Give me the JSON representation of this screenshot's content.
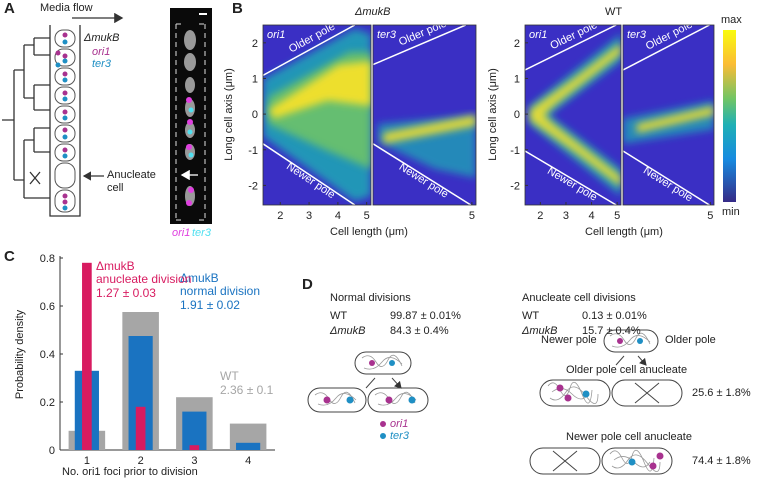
{
  "panel_a": {
    "label": "A",
    "media_flow": "Media flow",
    "strain": "ΔmukB",
    "legend": [
      {
        "name": "ori1",
        "color": "#a8328f"
      },
      {
        "name": "ter3",
        "color": "#1f8fc4"
      }
    ],
    "anucleate_cell": "Anucleate cell",
    "micrograph_labels": [
      {
        "name": "ori1",
        "color": "#e040e0"
      },
      {
        "name": "ter3",
        "color": "#50e0f0"
      }
    ]
  },
  "panel_b": {
    "label": "B",
    "xlim": [
      1.4,
      5.15
    ],
    "ylim": [
      -2.55,
      2.5
    ],
    "yticks": [
      -2,
      -1,
      0,
      1,
      2
    ],
    "x_label": "Cell length (μm)",
    "y_label": "Long cell axis (μm)",
    "older_pole": "Older pole",
    "newer_pole": "Newer pole",
    "strains": [
      {
        "title": "ΔmukB",
        "maps": [
          {
            "label": "ori1",
            "xticks": [
              2,
              3,
              4,
              5
            ]
          },
          {
            "label": "ter3",
            "xticks": [
              5
            ]
          }
        ]
      },
      {
        "title": "WT",
        "maps": [
          {
            "label": "ori1",
            "xticks": [
              2,
              3,
              4,
              5
            ]
          },
          {
            "label": "ter3",
            "xticks": [
              5
            ]
          }
        ]
      }
    ],
    "colorbar": {
      "max": "max",
      "min": "min"
    }
  },
  "chart_data": {
    "type": "bar",
    "panel_label": "C",
    "categories": [
      "1",
      "2",
      "3",
      "4"
    ],
    "x_label": "No. ori1 foci prior to division",
    "y_label": "Probability density",
    "ylim": [
      0,
      0.8
    ],
    "yticks": [
      0,
      0.2,
      0.4,
      0.6,
      0.8
    ],
    "series": [
      {
        "name": "WT",
        "annotation": "2.36 ± 0.1",
        "color": "#a6a6a6",
        "values": [
          0.08,
          0.575,
          0.22,
          0.11
        ]
      },
      {
        "name": "ΔmukB\nnormal division",
        "annotation": "1.91 ± 0.02",
        "color": "#1a73c1",
        "values": [
          0.33,
          0.475,
          0.16,
          0.03
        ]
      },
      {
        "name": "ΔmukB\nanucleate division",
        "annotation": "1.27 ± 0.03",
        "color": "#d81b60",
        "values": [
          0.78,
          0.18,
          0.02,
          0
        ]
      }
    ]
  },
  "panel_d": {
    "label": "D",
    "normal": {
      "title": "Normal divisions",
      "rows": [
        [
          "WT",
          "99.87 ± 0.01%"
        ],
        [
          "ΔmukB",
          "84.3 ± 0.4%"
        ]
      ]
    },
    "anucleate": {
      "title": "Anucleate cell divisions",
      "rows": [
        [
          "WT",
          "0.13 ± 0.01%"
        ],
        [
          "ΔmukB",
          "15.7 ± 0.4%"
        ]
      ]
    },
    "newer_pole": "Newer pole",
    "older_pole": "Older pole",
    "outcomes": [
      {
        "title": "Older pole cell anucleate",
        "value": "25.6 ± 1.8%"
      },
      {
        "title": "Newer pole cell anucleate",
        "value": "74.4 ± 1.8%"
      }
    ],
    "legend": [
      {
        "name": "ori1",
        "color": "#a8328f"
      },
      {
        "name": "ter3",
        "color": "#1f8fc4"
      }
    ]
  }
}
